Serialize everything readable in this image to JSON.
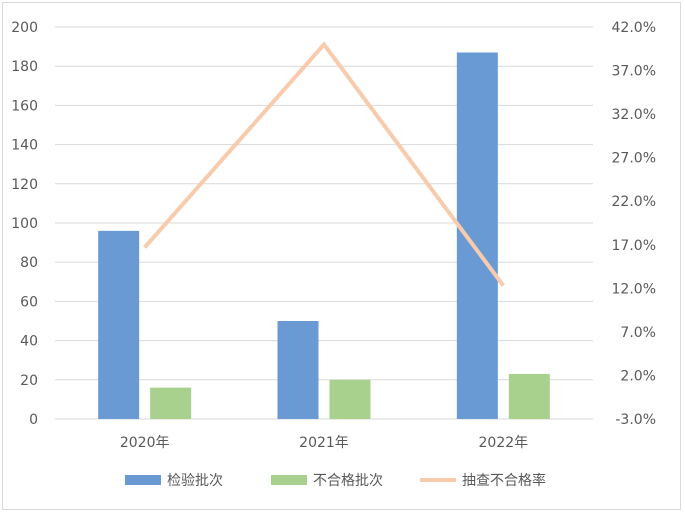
{
  "chart_data": {
    "type": "bar",
    "categories": [
      "2020年",
      "2021年",
      "2022年"
    ],
    "series": [
      {
        "name": "检验批次",
        "kind": "bar",
        "axis": "left",
        "color": "#6a9ad4",
        "values": [
          96,
          50,
          187
        ]
      },
      {
        "name": "不合格批次",
        "kind": "bar",
        "axis": "left",
        "color": "#a9d18e",
        "values": [
          16,
          20,
          23
        ]
      },
      {
        "name": "抽查不合格率",
        "kind": "line",
        "axis": "right",
        "color": "#f8cbad",
        "values": [
          16.7,
          40.0,
          12.3
        ]
      }
    ],
    "y_left": {
      "min": 0,
      "max": 200,
      "step": 20,
      "ticks": [
        "0",
        "20",
        "40",
        "60",
        "80",
        "100",
        "120",
        "140",
        "160",
        "180",
        "200"
      ]
    },
    "y_right": {
      "min": -3,
      "max": 42,
      "step": 5,
      "ticks": [
        "-3.0%",
        "2.0%",
        "7.0%",
        "12.0%",
        "17.0%",
        "22.0%",
        "27.0%",
        "32.0%",
        "37.0%",
        "42.0%"
      ]
    },
    "grid": "horizontal",
    "legend_position": "bottom"
  }
}
